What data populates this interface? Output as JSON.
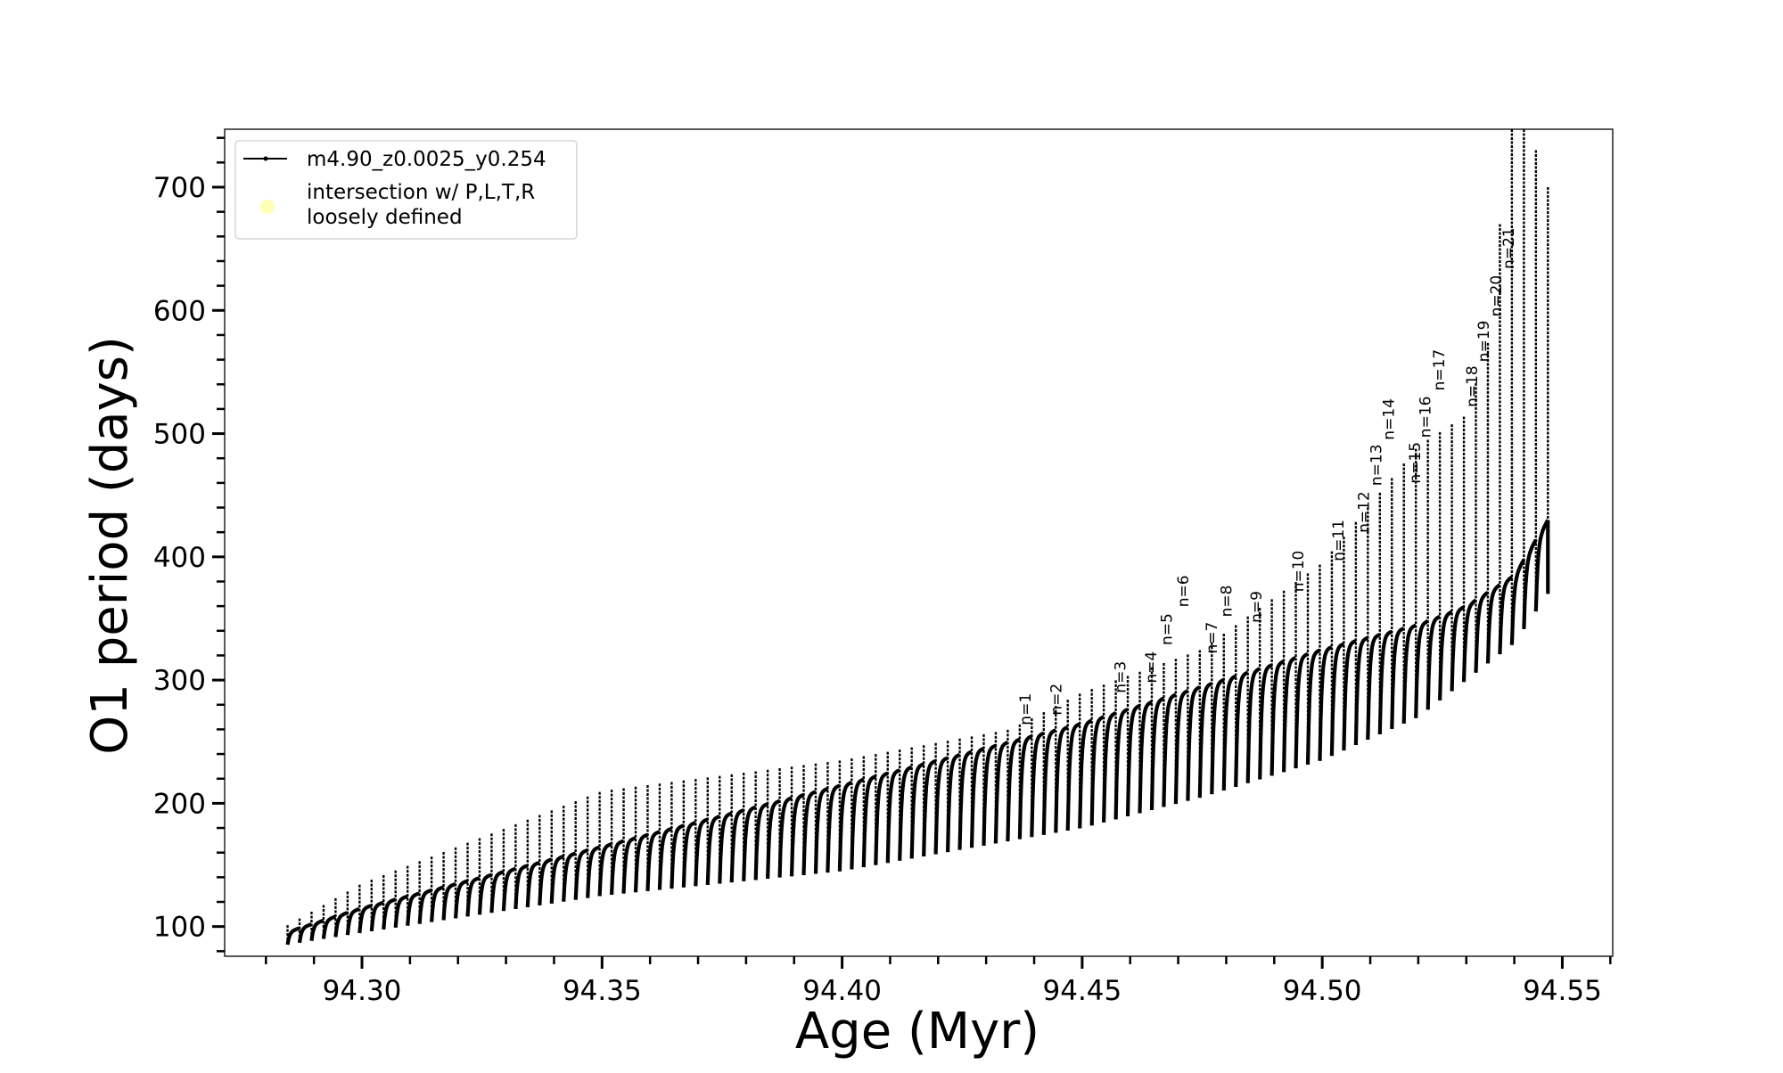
{
  "chart_data": {
    "type": "line",
    "title": "",
    "xlabel": "Age (Myr)",
    "ylabel": "O1 period (days)",
    "xlim": [
      94.2714,
      94.5605
    ],
    "ylim": [
      75.9,
      747
    ],
    "xticks": [
      "94.30",
      "94.35",
      "94.40",
      "94.45",
      "94.50",
      "94.55"
    ],
    "yticks": [
      "100",
      "200",
      "300",
      "400",
      "500",
      "600",
      "700"
    ],
    "grid": false,
    "legend_placement": "top-left",
    "legend": [
      {
        "label": "m4.90_z0.0025_y0.254",
        "marker": "line-with-dot",
        "color": "#000000"
      },
      {
        "label_lines": [
          "intersection w/ P,L,T,R",
          "loosely defined"
        ],
        "marker": "circle",
        "color": "#ffffb3"
      }
    ],
    "series": [
      {
        "name": "m4.90_z0.0025_y0.254",
        "color": "#000000",
        "pattern": "periodic spikes (thermal pulses) superposed on a rising base curve",
        "pulse_interval_myr": 0.0025,
        "first_pulse_age": 94.2845,
        "last_age": 94.547,
        "base_curve": {
          "x": [
            94.284,
            94.3,
            94.35,
            94.4,
            94.45,
            94.475,
            94.5,
            94.52,
            94.53,
            94.54,
            94.547
          ],
          "y": [
            95,
            115,
            165,
            215,
            265,
            295,
            325,
            345,
            360,
            385,
            430
          ]
        },
        "spike_upper_envelope": {
          "x": [
            94.284,
            94.3,
            94.35,
            94.4,
            94.435,
            94.45,
            94.475,
            94.5,
            94.52,
            94.53,
            94.535,
            94.539,
            94.542,
            94.547
          ],
          "y": [
            100,
            135,
            210,
            235,
            260,
            290,
            325,
            395,
            490,
            515,
            580,
            760,
            760,
            700
          ]
        },
        "spike_lower_envelope": {
          "x": [
            94.284,
            94.3,
            94.35,
            94.4,
            94.45,
            94.475,
            94.5,
            94.52,
            94.53,
            94.54,
            94.547
          ],
          "y": [
            85,
            95,
            125,
            145,
            180,
            205,
            235,
            270,
            300,
            330,
            370
          ]
        }
      }
    ],
    "annotations": [
      {
        "text": "n=1",
        "x": 94.4381,
        "y": 262
      },
      {
        "text": "n=2",
        "x": 94.4445,
        "y": 270
      },
      {
        "text": "n=3",
        "x": 94.4579,
        "y": 288
      },
      {
        "text": "n=4",
        "x": 94.4643,
        "y": 296
      },
      {
        "text": "n=5",
        "x": 94.4676,
        "y": 303
      },
      {
        "text": "n=6",
        "x": 94.471,
        "y": 310
      },
      {
        "text": "n=7",
        "x": 94.4769,
        "y": 320
      },
      {
        "text": "n=8",
        "x": 94.48,
        "y": 328
      },
      {
        "text": "n=9",
        "x": 94.4862,
        "y": 345
      },
      {
        "text": "n=10",
        "x": 94.495,
        "y": 370
      },
      {
        "text": "n=11",
        "x": 94.5033,
        "y": 395
      },
      {
        "text": "n=12",
        "x": 94.5086,
        "y": 418
      },
      {
        "text": "n=13",
        "x": 94.5112,
        "y": 428
      },
      {
        "text": "n=14",
        "x": 94.5138,
        "y": 437
      },
      {
        "text": "n=15",
        "x": 94.5193,
        "y": 458
      },
      {
        "text": "n=16",
        "x": 94.5214,
        "y": 467
      },
      {
        "text": "n=17",
        "x": 94.5243,
        "y": 477
      },
      {
        "text": "n=18",
        "x": 94.5312,
        "y": 520
      },
      {
        "text": "n=19",
        "x": 94.5336,
        "y": 535
      },
      {
        "text": "n=20",
        "x": 94.5362,
        "y": 550
      },
      {
        "text": "n=21",
        "x": 94.5388,
        "y": 580
      }
    ]
  }
}
